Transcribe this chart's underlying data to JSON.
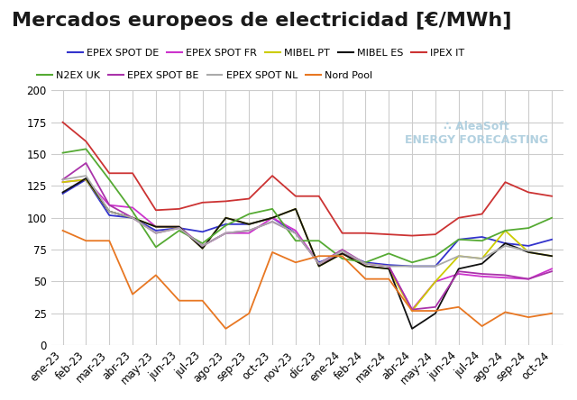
{
  "title": "Mercados europeos de electricidad [€/MWh]",
  "x_labels": [
    "ene-23",
    "feb-23",
    "mar-23",
    "abr-23",
    "may-23",
    "jun-23",
    "jul-23",
    "ago-23",
    "sep-23",
    "oct-23",
    "nov-23",
    "dic-23",
    "ene-24",
    "feb-24",
    "mar-24",
    "abr-24",
    "may-24",
    "jun-24",
    "jul-24",
    "ago-24",
    "sep-24",
    "oct-24"
  ],
  "series": {
    "EPEX SPOT DE": {
      "color": "#3333cc",
      "values": [
        119,
        130,
        102,
        100,
        90,
        92,
        89,
        95,
        95,
        100,
        88,
        65,
        72,
        65,
        63,
        62,
        62,
        83,
        85,
        80,
        78,
        83
      ]
    },
    "EPEX SPOT FR": {
      "color": "#cc33cc",
      "values": [
        128,
        130,
        110,
        108,
        93,
        93,
        78,
        88,
        88,
        100,
        90,
        64,
        72,
        64,
        62,
        28,
        50,
        56,
        54,
        53,
        52,
        60
      ]
    },
    "MIBEL PT": {
      "color": "#cccc00",
      "values": [
        128,
        130,
        105,
        100,
        93,
        93,
        76,
        100,
        95,
        100,
        107,
        62,
        72,
        62,
        60,
        27,
        50,
        70,
        68,
        90,
        73,
        70
      ]
    },
    "MIBEL ES": {
      "color": "#111111",
      "values": [
        120,
        131,
        105,
        100,
        93,
        93,
        76,
        100,
        95,
        100,
        107,
        62,
        72,
        62,
        60,
        13,
        25,
        60,
        64,
        80,
        73,
        70
      ]
    },
    "IPEX IT": {
      "color": "#cc3333",
      "values": [
        175,
        160,
        135,
        135,
        106,
        107,
        112,
        113,
        115,
        133,
        117,
        117,
        88,
        88,
        87,
        86,
        87,
        100,
        103,
        128,
        120,
        117
      ]
    },
    "N2EX UK": {
      "color": "#55aa33",
      "values": [
        151,
        154,
        130,
        105,
        77,
        90,
        80,
        94,
        103,
        107,
        82,
        82,
        68,
        65,
        72,
        65,
        70,
        83,
        82,
        90,
        92,
        100
      ]
    },
    "EPEX SPOT BE": {
      "color": "#aa33aa",
      "values": [
        130,
        143,
        110,
        100,
        88,
        92,
        78,
        88,
        90,
        97,
        88,
        64,
        75,
        64,
        62,
        28,
        30,
        58,
        56,
        55,
        52,
        58
      ]
    },
    "EPEX SPOT NL": {
      "color": "#aaaaaa",
      "values": [
        130,
        133,
        105,
        100,
        88,
        92,
        78,
        88,
        90,
        97,
        88,
        64,
        74,
        64,
        62,
        62,
        62,
        70,
        68,
        78,
        74,
        75
      ]
    },
    "Nord Pool": {
      "color": "#e87722",
      "values": [
        90,
        82,
        82,
        40,
        55,
        35,
        35,
        13,
        25,
        73,
        65,
        70,
        70,
        52,
        52,
        27,
        27,
        30,
        15,
        26,
        22,
        25
      ]
    }
  },
  "ylim": [
    0,
    200
  ],
  "yticks": [
    0,
    25,
    50,
    75,
    100,
    125,
    150,
    175,
    200
  ],
  "background_color": "#ffffff",
  "grid_color": "#cccccc",
  "title_color": "#1a1a1a",
  "title_fontsize": 16,
  "legend_fontsize": 8,
  "tick_fontsize": 8.5,
  "watermark_text": "∴ AleaSoft\nENERGY FORECASTING",
  "watermark_color": "#aaccdd"
}
